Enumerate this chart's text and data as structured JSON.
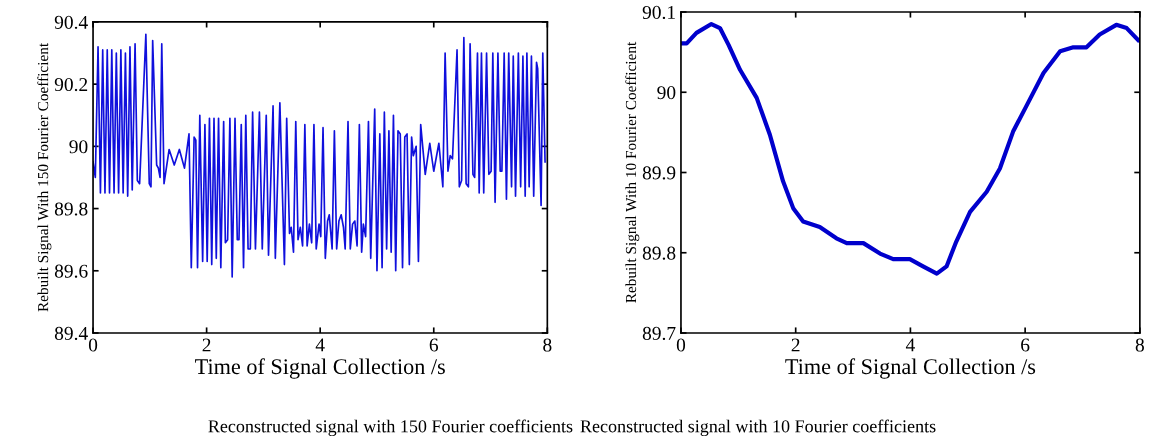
{
  "chart_data": [
    {
      "type": "line",
      "xlabel": "Time of Signal Collection /s",
      "ylabel": "Rebuilt Signal With 150 Fourier Coefficient",
      "xlim": [
        0,
        8
      ],
      "xticks": [
        0,
        2,
        4,
        6,
        8
      ],
      "ylim": [
        89.4,
        90.4
      ],
      "yticks": [
        89.4,
        89.6,
        89.8,
        90,
        90.2,
        90.4
      ],
      "grid": false,
      "line_style": "solid",
      "annotations": [
        "Reconstructed signal with 150 Fourier coefficients"
      ],
      "series": [
        {
          "color": "#1010dd",
          "x": [
            0.0,
            0.04,
            0.088,
            0.13,
            0.17,
            0.21,
            0.25,
            0.29,
            0.33,
            0.37,
            0.41,
            0.45,
            0.49,
            0.53,
            0.57,
            0.61,
            0.65,
            0.69,
            0.74,
            0.78,
            0.82,
            0.93,
            0.99,
            1.02,
            1.05,
            1.12,
            1.15,
            1.18,
            1.21,
            1.25,
            1.34,
            1.43,
            1.52,
            1.61,
            1.69,
            1.73,
            1.78,
            1.81,
            1.84,
            1.88,
            1.93,
            1.97,
            2.01,
            2.05,
            2.09,
            2.13,
            2.17,
            2.21,
            2.25,
            2.3,
            2.33,
            2.37,
            2.41,
            2.45,
            2.5,
            2.54,
            2.57,
            2.61,
            2.65,
            2.69,
            2.73,
            2.77,
            2.81,
            2.86,
            2.93,
            2.98,
            3.05,
            3.09,
            3.17,
            3.21,
            3.29,
            3.37,
            3.41,
            3.46,
            3.49,
            3.53,
            3.57,
            3.61,
            3.65,
            3.69,
            3.73,
            3.77,
            3.81,
            3.85,
            3.89,
            3.93,
            3.98,
            4.01,
            4.05,
            4.09,
            4.13,
            4.16,
            4.21,
            4.25,
            4.29,
            4.33,
            4.37,
            4.41,
            4.44,
            4.49,
            4.53,
            4.57,
            4.61,
            4.65,
            4.69,
            4.73,
            4.76,
            4.8,
            4.85,
            4.89,
            4.96,
            5.0,
            5.05,
            5.09,
            5.13,
            5.17,
            5.21,
            5.25,
            5.29,
            5.33,
            5.37,
            5.41,
            5.45,
            5.49,
            5.53,
            5.57,
            5.61,
            5.64,
            5.69,
            5.73,
            5.77,
            5.85,
            5.93,
            6.0,
            6.09,
            6.16,
            6.2,
            6.25,
            6.29,
            6.33,
            6.41,
            6.45,
            6.49,
            6.53,
            6.57,
            6.61,
            6.64,
            6.69,
            6.72,
            6.77,
            6.8,
            6.84,
            6.88,
            6.93,
            6.97,
            7.01,
            7.04,
            7.08,
            7.13,
            7.17,
            7.2,
            7.24,
            7.28,
            7.32,
            7.37,
            7.4,
            7.44,
            7.49,
            7.53,
            7.57,
            7.61,
            7.64,
            7.68,
            7.72,
            7.76,
            7.81,
            7.83,
            7.89,
            7.92,
            7.96
          ],
          "values": [
            89.95,
            89.9,
            90.32,
            89.85,
            90.31,
            89.85,
            90.31,
            89.85,
            90.31,
            89.85,
            90.3,
            89.85,
            90.31,
            89.85,
            90.3,
            89.84,
            90.32,
            89.86,
            90.33,
            89.89,
            89.88,
            90.36,
            89.88,
            89.87,
            90.34,
            89.94,
            89.93,
            89.9,
            90.33,
            89.88,
            89.99,
            89.94,
            89.99,
            89.93,
            90.04,
            89.61,
            90.03,
            90.02,
            89.61,
            90.1,
            89.63,
            90.07,
            89.63,
            90.09,
            89.62,
            90.09,
            89.64,
            90.09,
            89.61,
            90.08,
            89.69,
            89.7,
            90.09,
            89.58,
            90.09,
            89.7,
            89.7,
            90.07,
            89.61,
            90.1,
            89.67,
            89.67,
            90.11,
            89.67,
            90.11,
            89.67,
            90.1,
            89.65,
            90.13,
            89.64,
            90.14,
            89.62,
            90.09,
            89.72,
            89.74,
            89.66,
            90.08,
            89.7,
            89.74,
            89.68,
            90.07,
            89.68,
            89.75,
            89.69,
            90.07,
            89.67,
            89.75,
            89.71,
            90.06,
            89.64,
            89.76,
            89.78,
            89.67,
            90.05,
            89.67,
            89.76,
            89.78,
            89.74,
            89.67,
            90.08,
            89.67,
            89.75,
            89.76,
            89.68,
            90.07,
            89.66,
            89.75,
            89.71,
            90.08,
            89.64,
            90.12,
            89.6,
            90.04,
            89.61,
            90.11,
            89.67,
            90.05,
            89.66,
            90.1,
            89.6,
            90.05,
            90.04,
            89.61,
            90.03,
            90.04,
            89.62,
            90.03,
            89.97,
            90.0,
            89.63,
            90.07,
            89.91,
            90.01,
            89.92,
            90.01,
            89.87,
            90.3,
            89.92,
            89.97,
            89.96,
            90.31,
            89.87,
            89.89,
            90.35,
            89.88,
            89.87,
            90.33,
            89.91,
            89.9,
            90.3,
            89.85,
            90.3,
            89.85,
            90.3,
            89.91,
            89.92,
            90.3,
            89.82,
            90.3,
            89.92,
            89.92,
            90.3,
            89.83,
            90.3,
            89.87,
            90.29,
            89.84,
            90.3,
            89.87,
            90.29,
            89.84,
            90.3,
            89.87,
            90.29,
            89.84,
            90.27,
            90.25,
            89.81,
            90.3,
            89.95
          ]
        }
      ]
    },
    {
      "type": "line",
      "xlabel": "Time of Signal Collection /s",
      "ylabel": "Rebuilt Signal With 10 Fourier Coefficient",
      "xlim": [
        0,
        8
      ],
      "xticks": [
        0,
        2,
        4,
        6,
        8
      ],
      "ylim": [
        89.7,
        90.1
      ],
      "yticks": [
        89.7,
        89.8,
        89.9,
        90,
        90.1
      ],
      "grid": false,
      "line_style": "solid",
      "annotations": [
        "Reconstructed signal with 10 Fourier coefficients"
      ],
      "series": [
        {
          "color": "#0000cc",
          "x": [
            0,
            0.1,
            0.27,
            0.53,
            0.68,
            0.83,
            1.03,
            1.32,
            1.55,
            1.78,
            1.96,
            2.13,
            2.42,
            2.71,
            2.89,
            3.18,
            3.47,
            3.7,
            3.99,
            4.22,
            4.46,
            4.63,
            4.8,
            5.04,
            5.33,
            5.56,
            5.79,
            6.03,
            6.32,
            6.61,
            6.84,
            7.07,
            7.3,
            7.59,
            7.77,
            7.97
          ],
          "values": [
            90.061,
            90.061,
            90.074,
            90.085,
            90.08,
            90.059,
            90.028,
            89.993,
            89.947,
            89.889,
            89.855,
            89.839,
            89.832,
            89.818,
            89.812,
            89.812,
            89.799,
            89.792,
            89.792,
            89.783,
            89.774,
            89.783,
            89.814,
            89.851,
            89.876,
            89.905,
            89.951,
            89.984,
            90.024,
            90.051,
            90.056,
            90.056,
            90.072,
            90.084,
            90.08,
            90.065
          ]
        }
      ]
    }
  ]
}
